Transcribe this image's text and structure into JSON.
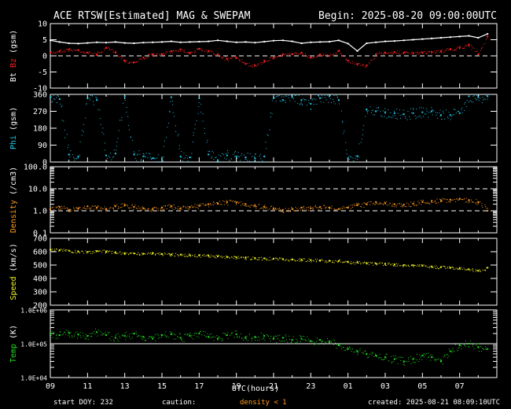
{
  "header": {
    "title": "ACE RTSW[Estimated] MAG & SWEPAM",
    "begin": "Begin: 2025-08-20 09:00:00UTC"
  },
  "footer": {
    "start_doy": "start DOY: 232",
    "caution": "caution:",
    "density_note": "density < 1",
    "created": "created: 2025-08-21 08:09:10UTC"
  },
  "colors": {
    "bt": "#ffffff",
    "bz": "#ff2020",
    "phi": "#20c8e8",
    "density": "#ff9a20",
    "speed": "#f0f020",
    "temp": "#20d820",
    "frame": "#ffffff",
    "background": "#000000"
  },
  "chart_data": {
    "type": "scatter",
    "time_axis": {
      "xlabel": "UTC(hours)",
      "range_hours": [
        0,
        24
      ],
      "tick_labels": [
        "09",
        "11",
        "13",
        "15",
        "17",
        "19",
        "21",
        "23",
        "01",
        "03",
        "05",
        "07"
      ]
    },
    "panels": [
      {
        "id": "mag",
        "ylabel": [
          "Bt",
          "Bz",
          "(gsm)"
        ],
        "ylabel_colors": [
          "#ffffff",
          "#ff2020",
          "#ffffff"
        ],
        "ylim": [
          -10,
          10
        ],
        "yticks": [
          "-10",
          "-5",
          "0",
          "5",
          "10"
        ],
        "ytick_values": [
          -10,
          -5,
          0,
          5,
          10
        ],
        "dashed_ref": [
          0
        ],
        "series": [
          {
            "name": "Bt",
            "style": "line",
            "x": [
              0,
              0.5,
              1,
              1.5,
              2,
              2.5,
              3,
              3.5,
              4,
              4.5,
              5,
              5.5,
              6,
              6.5,
              7,
              7.5,
              8,
              8.5,
              9,
              9.5,
              10,
              10.5,
              11,
              11.5,
              12,
              12.5,
              13,
              13.5,
              14,
              14.5,
              15,
              15.5,
              16,
              16.5,
              17,
              17.5,
              18,
              18.5,
              19,
              19.5,
              20,
              20.5,
              21,
              21.5,
              22,
              22.5,
              23,
              23.5
            ],
            "values": [
              4.8,
              4.3,
              3.9,
              3.8,
              4.0,
              4.2,
              4.1,
              4.3,
              4.0,
              3.9,
              4.1,
              4.2,
              4.3,
              4.5,
              4.2,
              4.3,
              4.4,
              4.5,
              4.8,
              4.5,
              4.2,
              4.3,
              4.1,
              4.4,
              4.7,
              4.8,
              4.5,
              3.9,
              4.2,
              4.3,
              4.4,
              4.8,
              3.8,
              1.5,
              3.9,
              4.2,
              4.5,
              4.6,
              4.8,
              5.0,
              5.2,
              5.4,
              5.6,
              5.8,
              6.0,
              6.2,
              5.6,
              6.8
            ]
          },
          {
            "name": "Bz",
            "style": "points",
            "x": [
              0,
              0.5,
              1,
              1.5,
              2,
              2.5,
              3,
              3.5,
              4,
              4.5,
              5,
              5.5,
              6,
              6.5,
              7,
              7.5,
              8,
              8.5,
              9,
              9.5,
              10,
              10.5,
              11,
              11.5,
              12,
              12.5,
              13,
              13.5,
              14,
              14.5,
              15,
              15.5,
              16,
              16.5,
              17,
              17.5,
              18,
              18.5,
              19,
              19.5,
              20,
              20.5,
              21,
              21.5,
              22,
              22.5,
              23,
              23.5
            ],
            "values": [
              1.0,
              1.5,
              2.0,
              1.8,
              1.0,
              0.5,
              2.5,
              1.0,
              -1.5,
              -2.0,
              -0.5,
              0.5,
              0.5,
              1.5,
              2.0,
              1.0,
              2.2,
              1.5,
              0.5,
              -1.0,
              -0.5,
              -2.5,
              -3.0,
              -1.5,
              -0.5,
              0.5,
              0.5,
              1.0,
              -0.5,
              0.5,
              0.0,
              1.5,
              -1.5,
              -2.5,
              -3.0,
              0.5,
              1.0,
              1.2,
              1.0,
              0.8,
              1.0,
              1.2,
              1.5,
              2.0,
              2.5,
              3.5,
              0.5,
              6.0
            ]
          }
        ]
      },
      {
        "id": "phi",
        "ylabel": [
          "Phi",
          "(gsm)"
        ],
        "ylabel_colors": [
          "#20c8e8",
          "#ffffff"
        ],
        "ylim": [
          0,
          360
        ],
        "yticks": [
          "0",
          "90",
          "180",
          "270",
          "360"
        ],
        "ytick_values": [
          0,
          90,
          180,
          270,
          360
        ],
        "series": [
          {
            "name": "Phi",
            "style": "points",
            "x": [
              0,
              0.5,
              1,
              1.5,
              2,
              2.5,
              3,
              3.5,
              4,
              4.5,
              5,
              5.5,
              6,
              6.5,
              7,
              7.5,
              8,
              8.5,
              9,
              9.5,
              10,
              10.5,
              11,
              11.5,
              12,
              12.5,
              13,
              13.5,
              14,
              14.5,
              15,
              15.5,
              16,
              16.5,
              17,
              17.5,
              18,
              18.5,
              19,
              19.5,
              20,
              20.5,
              21,
              21.5,
              22,
              22.5,
              23,
              23.5
            ],
            "values": [
              345,
              335,
              40,
              30,
              340,
              330,
              35,
              45,
              350,
              40,
              30,
              20,
              15,
              345,
              30,
              25,
              340,
              40,
              10,
              35,
              30,
              25,
              20,
              30,
              340,
              330,
              345,
              330,
              310,
              340,
              350,
              330,
              20,
              30,
              280,
              270,
              265,
              260,
              255,
              260,
              265,
              270,
              250,
              250,
              260,
              350,
              345,
              350
            ]
          }
        ]
      },
      {
        "id": "density",
        "ylabel": [
          "Density",
          "(/cm3)"
        ],
        "ylabel_colors": [
          "#ff9a20",
          "#ffffff"
        ],
        "log": true,
        "ylim": [
          0.1,
          100
        ],
        "yticks": [
          "0.1",
          "1.0",
          "10.0",
          "100.0"
        ],
        "ytick_values": [
          0.1,
          1,
          10,
          100
        ],
        "dashed_ref": [
          1,
          10
        ],
        "series": [
          {
            "name": "Density",
            "style": "points",
            "x": [
              0,
              0.5,
              1,
              1.5,
              2,
              2.5,
              3,
              3.5,
              4,
              4.5,
              5,
              5.5,
              6,
              6.5,
              7,
              7.5,
              8,
              8.5,
              9,
              9.5,
              10,
              10.5,
              11,
              11.5,
              12,
              12.5,
              13,
              13.5,
              14,
              14.5,
              15,
              15.5,
              16,
              16.5,
              17,
              17.5,
              18,
              18.5,
              19,
              19.5,
              20,
              20.5,
              21,
              21.5,
              22,
              22.5,
              23,
              23.5
            ],
            "values": [
              1.2,
              1.5,
              1.1,
              1.3,
              1.6,
              1.4,
              1.2,
              1.6,
              1.8,
              1.5,
              1.3,
              1.2,
              1.4,
              1.6,
              1.3,
              1.5,
              1.7,
              2.0,
              2.2,
              2.5,
              2.4,
              2.0,
              1.7,
              1.5,
              1.3,
              1.1,
              1.2,
              1.4,
              1.3,
              1.5,
              1.4,
              1.2,
              1.4,
              1.8,
              2.0,
              2.5,
              2.2,
              2.0,
              1.9,
              2.1,
              2.5,
              2.8,
              3.0,
              3.2,
              3.5,
              3.0,
              2.5,
              1.0
            ]
          }
        ]
      },
      {
        "id": "speed",
        "ylabel": [
          "Speed",
          "(km/s)"
        ],
        "ylabel_colors": [
          "#f0f020",
          "#ffffff"
        ],
        "ylim": [
          200,
          700
        ],
        "yticks": [
          "200",
          "300",
          "400",
          "500",
          "600",
          "700"
        ],
        "ytick_values": [
          200,
          300,
          400,
          500,
          600,
          700
        ],
        "series": [
          {
            "name": "Speed",
            "style": "points",
            "x": [
              0,
              0.5,
              1,
              1.5,
              2,
              2.5,
              3,
              3.5,
              4,
              4.5,
              5,
              5.5,
              6,
              6.5,
              7,
              7.5,
              8,
              8.5,
              9,
              9.5,
              10,
              10.5,
              11,
              11.5,
              12,
              12.5,
              13,
              13.5,
              14,
              14.5,
              15,
              15.5,
              16,
              16.5,
              17,
              17.5,
              18,
              18.5,
              19,
              19.5,
              20,
              20.5,
              21,
              21.5,
              22,
              22.5,
              23,
              23.5
            ],
            "values": [
              615,
              612,
              608,
              600,
              598,
              605,
              602,
              595,
              590,
              588,
              585,
              590,
              583,
              580,
              578,
              575,
              572,
              570,
              565,
              560,
              558,
              555,
              552,
              550,
              548,
              545,
              542,
              540,
              538,
              535,
              532,
              530,
              525,
              520,
              515,
              512,
              510,
              505,
              500,
              498,
              495,
              490,
              485,
              480,
              475,
              468,
              458,
              480
            ]
          }
        ]
      },
      {
        "id": "temp",
        "ylabel": [
          "Temp",
          "(K)"
        ],
        "ylabel_colors": [
          "#20d820",
          "#ffffff"
        ],
        "log": true,
        "ylim": [
          10000,
          1000000
        ],
        "yticks": [
          "1.0E+04",
          "1.0E+05",
          "1.0E+06"
        ],
        "ytick_values": [
          10000,
          100000,
          1000000
        ],
        "solid_ref": [
          100000
        ],
        "series": [
          {
            "name": "Temp",
            "style": "points",
            "x": [
              0,
              0.5,
              1,
              1.5,
              2,
              2.5,
              3,
              3.5,
              4,
              4.5,
              5,
              5.5,
              6,
              6.5,
              7,
              7.5,
              8,
              8.5,
              9,
              9.5,
              10,
              10.5,
              11,
              11.5,
              12,
              12.5,
              13,
              13.5,
              14,
              14.5,
              15,
              15.5,
              16,
              16.5,
              17,
              17.5,
              18,
              18.5,
              19,
              19.5,
              20,
              20.5,
              21,
              21.5,
              22,
              22.5,
              23,
              23.5
            ],
            "values": [
              200000,
              180000,
              210000,
              190000,
              170000,
              220000,
              180000,
              150000,
              170000,
              200000,
              160000,
              140000,
              180000,
              190000,
              150000,
              170000,
              200000,
              160000,
              140000,
              180000,
              190000,
              150000,
              160000,
              170000,
              140000,
              150000,
              130000,
              140000,
              120000,
              130000,
              110000,
              90000,
              70000,
              60000,
              50000,
              45000,
              40000,
              35000,
              30000,
              35000,
              45000,
              40000,
              30000,
              60000,
              90000,
              100000,
              80000,
              70000
            ]
          }
        ]
      }
    ]
  }
}
